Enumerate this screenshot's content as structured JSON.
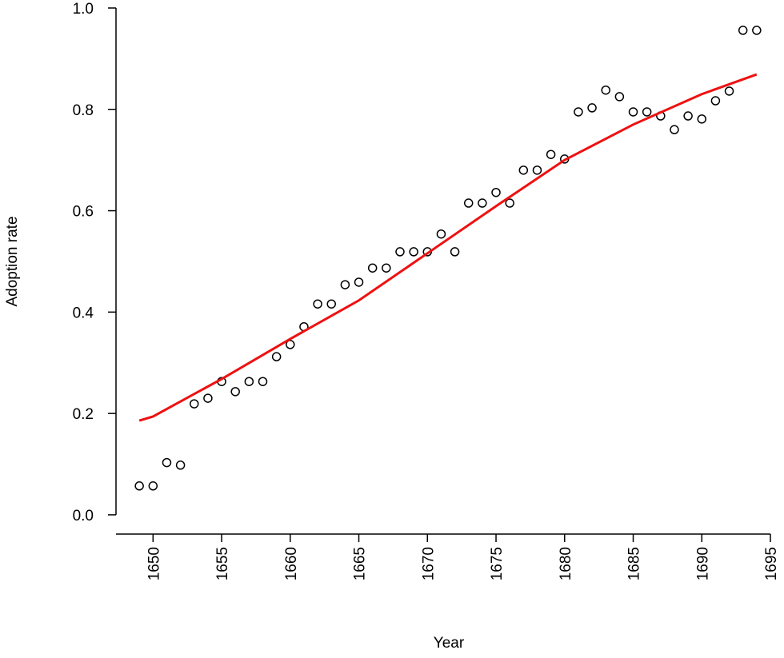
{
  "chart_data": {
    "type": "scatter",
    "xlabel": "Year",
    "ylabel": "Adoption rate",
    "xlim": [
      1647.3,
      1695.7
    ],
    "ylim": [
      -0.038,
      1.0
    ],
    "xticks": [
      1650,
      1655,
      1660,
      1665,
      1670,
      1675,
      1680,
      1685,
      1690,
      1695
    ],
    "yticks": [
      {
        "value": 0,
        "label": "0.0"
      },
      0.2,
      0.4,
      0.6,
      0.8,
      {
        "value": 1,
        "label": "1.0"
      }
    ],
    "series": [
      {
        "style": "points",
        "color": "#000000",
        "x": [
          1649,
          1650,
          1651,
          1652,
          1653,
          1654,
          1655,
          1656,
          1657,
          1658,
          1659,
          1660,
          1661,
          1662,
          1663,
          1664,
          1665,
          1666,
          1667,
          1668,
          1669,
          1670,
          1671,
          1672,
          1673,
          1674,
          1675,
          1676,
          1677,
          1678,
          1679,
          1680,
          1681,
          1682,
          1683,
          1684,
          1685,
          1686,
          1687,
          1688,
          1689,
          1690,
          1691,
          1692,
          1693,
          1694
        ],
        "values": [
          0.057,
          0.057,
          0.103,
          0.098,
          0.219,
          0.23,
          0.263,
          0.243,
          0.263,
          0.263,
          0.312,
          0.336,
          0.371,
          0.416,
          0.416,
          0.454,
          0.459,
          0.487,
          0.487,
          0.519,
          0.519,
          0.519,
          0.554,
          0.519,
          0.615,
          0.615,
          0.636,
          0.615,
          0.68,
          0.68,
          0.711,
          0.702,
          0.795,
          0.803,
          0.838,
          0.825,
          0.795,
          0.795,
          0.787,
          0.76,
          0.787,
          0.781,
          0.817,
          0.836,
          0.956,
          0.956
        ]
      },
      {
        "style": "line",
        "color": "#ee1111",
        "x": [
          1649,
          1650,
          1655,
          1660,
          1665,
          1670,
          1675,
          1680,
          1685,
          1690,
          1694
        ],
        "values": [
          0.186,
          0.194,
          0.268,
          0.347,
          0.423,
          0.516,
          0.609,
          0.7,
          0.77,
          0.83,
          0.869
        ]
      }
    ]
  }
}
